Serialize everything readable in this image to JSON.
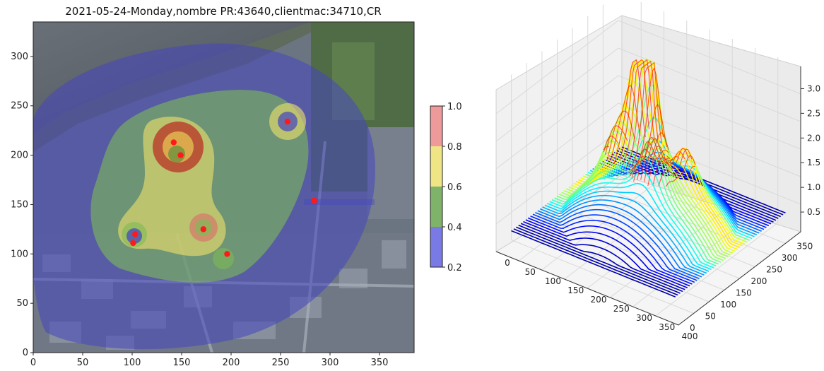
{
  "chart_data": [
    {
      "type": "heatmap",
      "title": "2021-05-24-Monday,nombre PR:43640,clientmac:34710,CR",
      "xlabel": "",
      "ylabel": "",
      "xlim": [
        0,
        385
      ],
      "ylim": [
        0,
        335
      ],
      "xticks": [
        0,
        50,
        100,
        150,
        200,
        250,
        300,
        350
      ],
      "yticks": [
        0,
        50,
        100,
        150,
        200,
        250,
        300
      ],
      "background": "aerial-photo",
      "colorbar": {
        "ticks": [
          "0.2",
          "0.4",
          "0.6",
          "0.8",
          "1.0"
        ],
        "bins": [
          {
            "from": 0.2,
            "to": 0.4,
            "color": "#7a7ae6"
          },
          {
            "from": 0.4,
            "to": 0.6,
            "color": "#7fb36a"
          },
          {
            "from": 0.6,
            "to": 0.8,
            "color": "#efe585"
          },
          {
            "from": 0.8,
            "to": 1.0,
            "color": "#ef9a9a"
          }
        ]
      },
      "points": [
        {
          "x": 142,
          "y": 213
        },
        {
          "x": 149,
          "y": 200
        },
        {
          "x": 257,
          "y": 234
        },
        {
          "x": 284,
          "y": 154
        },
        {
          "x": 172,
          "y": 125
        },
        {
          "x": 103,
          "y": 120
        },
        {
          "x": 101,
          "y": 111
        },
        {
          "x": 196,
          "y": 100
        }
      ],
      "point_color": "#ff1a1a"
    },
    {
      "type": "surface",
      "title": "",
      "xticks": [
        0,
        50,
        100,
        150,
        200,
        250,
        300,
        350,
        400
      ],
      "yticks": [
        0,
        50,
        100,
        150,
        200,
        250,
        300,
        350
      ],
      "zticks": [
        0.5,
        1.0,
        1.5,
        2.0,
        2.5,
        3.0
      ],
      "colormap": "jet",
      "grid": true
    }
  ],
  "colors": {
    "water": "#5d6570",
    "vegetation": "#3f6a36",
    "urban": "#6f7480",
    "outer_zone": "#4545c0"
  }
}
